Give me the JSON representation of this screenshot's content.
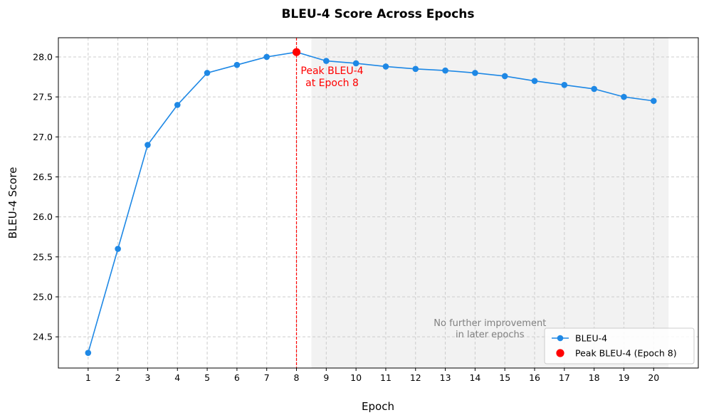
{
  "chart_data": {
    "type": "line",
    "title": "BLEU-4 Score Across Epochs",
    "xlabel": "Epoch",
    "ylabel": "BLEU-4 Score",
    "x": [
      1,
      2,
      3,
      4,
      5,
      6,
      7,
      8,
      9,
      10,
      11,
      12,
      13,
      14,
      15,
      16,
      17,
      18,
      19,
      20
    ],
    "series": [
      {
        "name": "BLEU-4",
        "color": "#1e88e5",
        "values": [
          24.3,
          25.6,
          26.9,
          27.4,
          27.8,
          27.9,
          28.0,
          28.06,
          27.95,
          27.92,
          27.88,
          27.85,
          27.83,
          27.8,
          27.76,
          27.7,
          27.65,
          27.6,
          27.5,
          27.45
        ]
      }
    ],
    "peak": {
      "name": "Peak BLEU-4 (Epoch 8)",
      "x": 8,
      "y": 28.06,
      "color": "#ff0000"
    },
    "peak_annotation": {
      "line1": "Peak BLEU-4",
      "line2": "at Epoch 8"
    },
    "shaded_region": {
      "x_start": 8.5,
      "x_end": 20.5,
      "color": "#f2f2f2",
      "annotation_line1": "No further improvement",
      "annotation_line2": "in later epochs"
    },
    "xlim": [
      0.0,
      21.5
    ],
    "ylim": [
      24.11,
      28.24
    ],
    "xticks": [
      "1",
      "2",
      "3",
      "4",
      "5",
      "6",
      "7",
      "8",
      "9",
      "10",
      "11",
      "12",
      "13",
      "14",
      "15",
      "16",
      "17",
      "18",
      "19",
      "20"
    ],
    "yticks": [
      "24.5",
      "25.0",
      "25.5",
      "26.0",
      "26.5",
      "27.0",
      "27.5",
      "28.0"
    ],
    "grid": true,
    "legend_position": "bottom-right"
  }
}
